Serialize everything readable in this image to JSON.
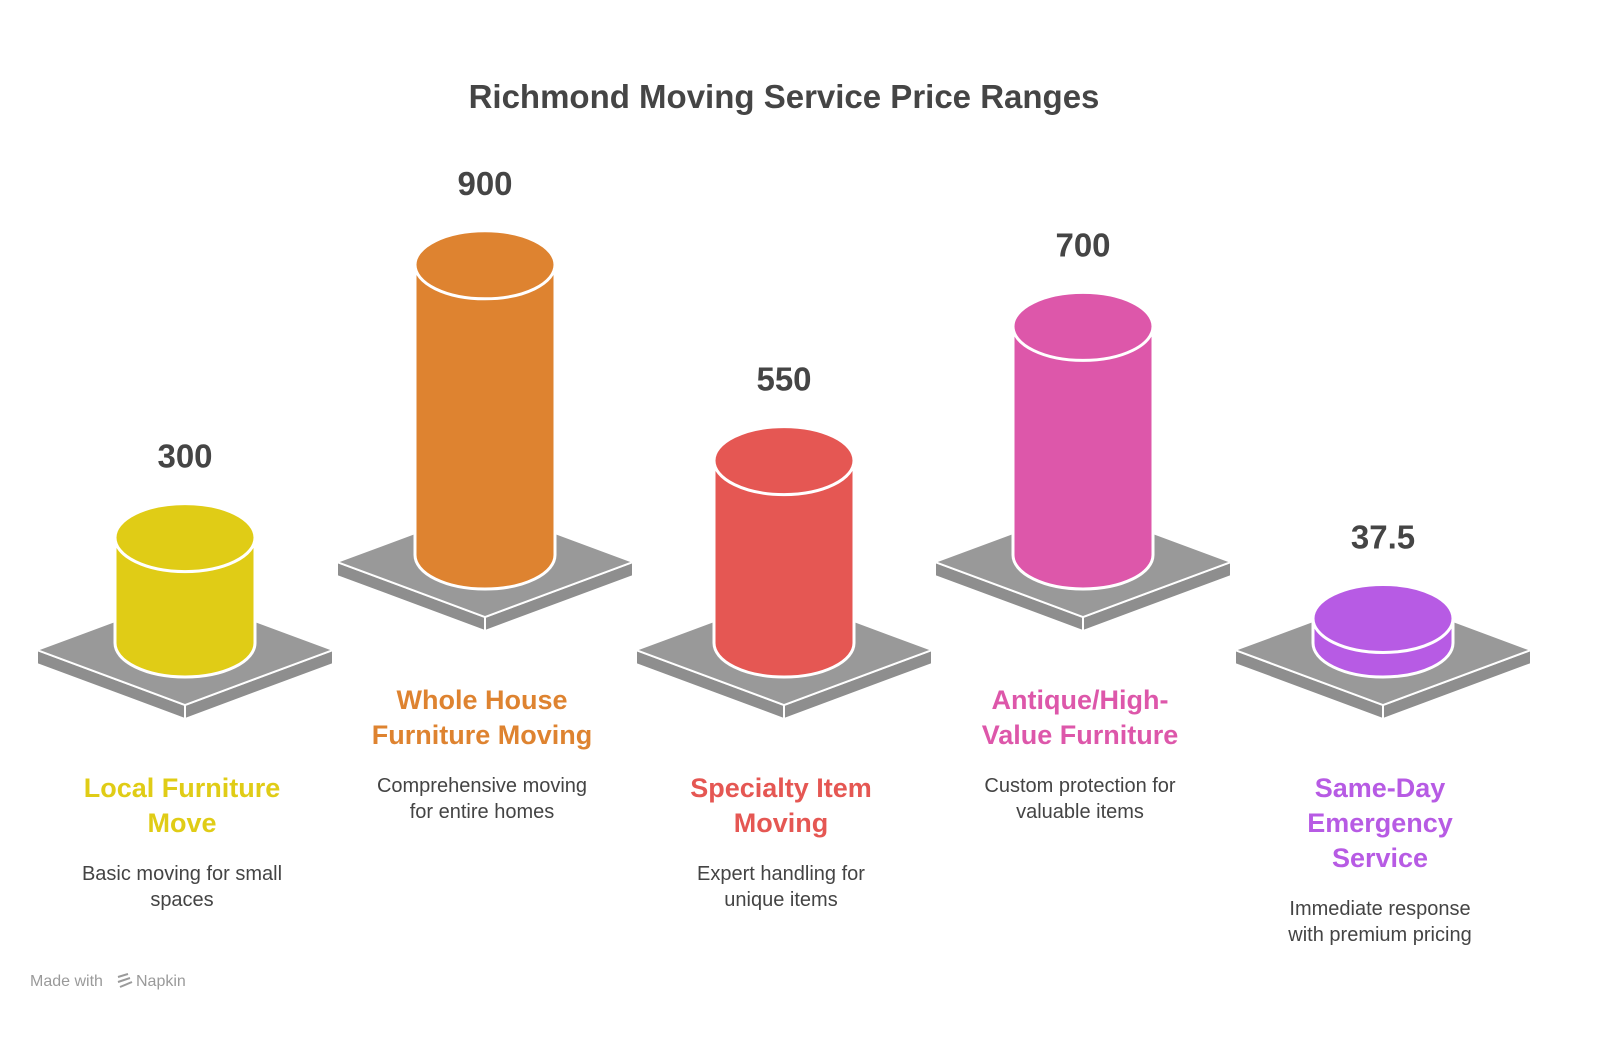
{
  "chart_data": {
    "type": "bar",
    "style": "3d-cylinders",
    "title": "Richmond Moving Service Price Ranges",
    "categories": [
      "Local Furniture Move",
      "Whole House Furniture Moving",
      "Specialty Item Moving",
      "Antique/High-Value Furniture",
      "Same-Day Emergency Service"
    ],
    "values": [
      300,
      900,
      550,
      700,
      37.5
    ],
    "value_labels": [
      "300",
      "900",
      "550",
      "700",
      "37.5"
    ],
    "label_lines": [
      [
        "Local Furniture",
        "Move"
      ],
      [
        "Whole House",
        "Furniture Moving"
      ],
      [
        "Specialty Item",
        "Moving"
      ],
      [
        "Antique/High-",
        "Value Furniture"
      ],
      [
        "Same-Day",
        "Emergency",
        "Service"
      ]
    ],
    "descriptions": [
      [
        "Basic moving for small",
        "spaces"
      ],
      [
        "Comprehensive moving",
        "for entire homes"
      ],
      [
        "Expert handling for",
        "unique items"
      ],
      [
        "Custom protection for",
        "valuable items"
      ],
      [
        "Immediate response",
        "with premium pricing"
      ]
    ],
    "colors": [
      "#e0cc16",
      "#de8330",
      "#e55753",
      "#dd57aa",
      "#b75be4"
    ],
    "platform_color": "#999999",
    "xlabel": "",
    "ylabel": "",
    "grid": false,
    "legend": "none"
  },
  "footer": {
    "text": "Made with",
    "brand": "Napkin"
  }
}
